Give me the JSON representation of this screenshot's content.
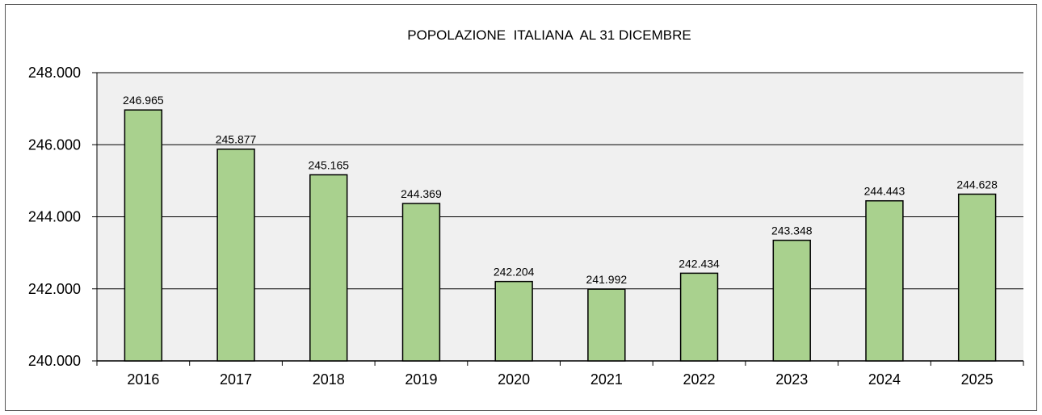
{
  "chart_data": {
    "type": "bar",
    "title": "POPOLAZIONE  ITALIANA  AL 31 DICEMBRE",
    "xlabel": "",
    "ylabel": "",
    "categories": [
      "2016",
      "2017",
      "2018",
      "2019",
      "2020",
      "2021",
      "2022",
      "2023",
      "2024",
      "2025"
    ],
    "values": [
      246965,
      245877,
      245165,
      244369,
      242204,
      241992,
      242434,
      243348,
      244443,
      244628
    ],
    "value_labels": [
      "246.965",
      "245.877",
      "245.165",
      "244.369",
      "242.204",
      "241.992",
      "242.434",
      "243.348",
      "244.443",
      "244.628"
    ],
    "ylim": [
      240000,
      248000
    ],
    "yticks": [
      240000,
      242000,
      244000,
      246000,
      248000
    ],
    "ytick_labels": [
      "240.000",
      "242.000",
      "244.000",
      "246.000",
      "248.000"
    ],
    "grid": true,
    "legend": "none",
    "colors": {
      "bar_fill": "#a9d18e",
      "bar_stroke": "#000000",
      "plot_background": "#f0f0f0",
      "gridline": "#000000"
    }
  }
}
